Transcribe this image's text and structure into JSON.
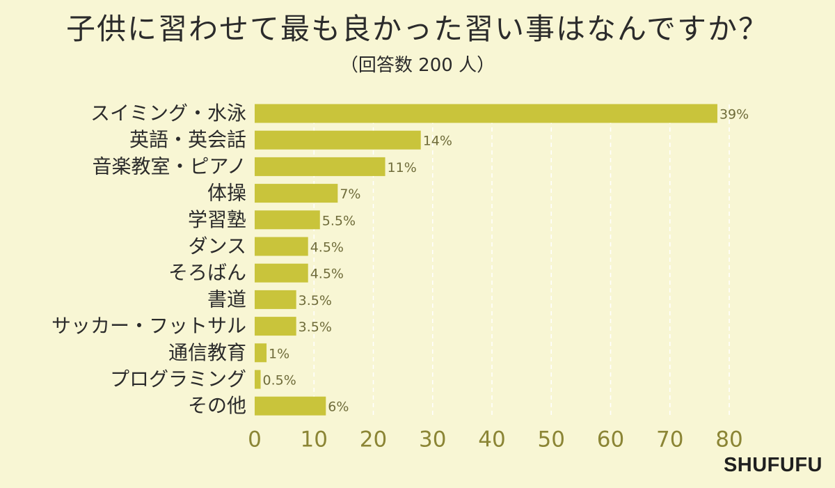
{
  "chart_data": {
    "type": "bar",
    "orientation": "horizontal",
    "title": "子供に習わせて最も良かった習い事はなんですか？",
    "subtitle": "（回答数 200 人）",
    "categories": [
      "スイミング・水泳",
      "英語・英会話",
      "音楽教室・ピアノ",
      "体操",
      "学習塾",
      "ダンス",
      "そろばん",
      "書道",
      "サッカー・フットサル",
      "通信教育",
      "プログラミング",
      "その他"
    ],
    "values": [
      78,
      28,
      22,
      14,
      11,
      9,
      9,
      7,
      7,
      2,
      1,
      12
    ],
    "data_labels": [
      "39%",
      "14%",
      "11%",
      "7%",
      "5.5%",
      "4.5%",
      "4.5%",
      "3.5%",
      "3.5%",
      "1%",
      "0.5%",
      "6%"
    ],
    "xlim": [
      0,
      80
    ],
    "x_ticks": [
      0,
      10,
      20,
      30,
      40,
      50,
      60,
      70,
      80
    ],
    "grid": "vertical dashed",
    "legend": "none"
  },
  "colors": {
    "background": "#f8f6d4",
    "bar": "#c9c43b",
    "text": "#2b2b2b",
    "axis_label": "#8b8535",
    "data_label": "#6f6c3a",
    "grid": "#ffffff"
  },
  "brand": "SHUFUFU"
}
